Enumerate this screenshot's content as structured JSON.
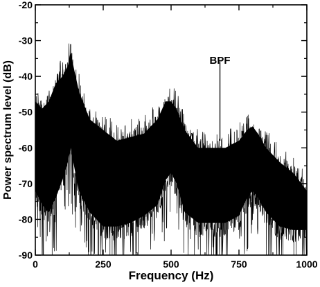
{
  "chart_data": {
    "type": "line",
    "title": "",
    "xlabel": "Frequency (Hz)",
    "ylabel": "Power spectrum level (dB)",
    "xlim": [
      0,
      1000
    ],
    "ylim": [
      -90,
      -20
    ],
    "x_ticks": [
      0,
      250,
      500,
      750,
      1000
    ],
    "y_ticks": [
      -90,
      -80,
      -70,
      -60,
      -50,
      -40,
      -30,
      -20
    ],
    "x_tick_labels": [
      "0",
      "250",
      "500",
      "750",
      "1000"
    ],
    "y_tick_labels": [
      "-90",
      "-80",
      "-70",
      "-60",
      "-50",
      "-40",
      "-30",
      "-20"
    ],
    "grid": false,
    "series": [
      {
        "name": "",
        "color": "#000000",
        "x": [
          0,
          25,
          50,
          75,
          100,
          120,
          130,
          140,
          160,
          200,
          250,
          300,
          350,
          400,
          450,
          480,
          500,
          520,
          550,
          600,
          650,
          700,
          750,
          780,
          800,
          820,
          850,
          900,
          950,
          1000
        ],
        "upper": [
          -45,
          -47,
          -45,
          -40,
          -38,
          -35,
          -31,
          -35,
          -42,
          -50,
          -53,
          -56,
          -55,
          -54,
          -50,
          -45,
          -45,
          -47,
          -53,
          -58,
          -58,
          -58,
          -56,
          -53,
          -52,
          -54,
          -58,
          -62,
          -65,
          -70
        ],
        "lower": [
          -78,
          -82,
          -84,
          -80,
          -75,
          -70,
          -66,
          -70,
          -78,
          -84,
          -88,
          -88,
          -87,
          -85,
          -82,
          -75,
          -73,
          -76,
          -84,
          -87,
          -87,
          -87,
          -85,
          -80,
          -78,
          -80,
          -84,
          -88,
          -89,
          -89
        ]
      }
    ],
    "annotations": [
      {
        "text": "BPF",
        "x": 680,
        "y": -38
      }
    ],
    "peaks": [
      {
        "x": 130,
        "y": -31
      },
      {
        "x": 680,
        "y": -36
      }
    ]
  }
}
